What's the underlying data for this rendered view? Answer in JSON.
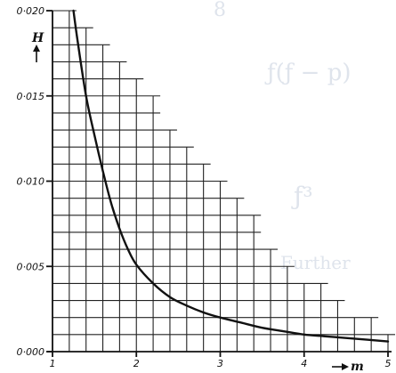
{
  "chart_data": {
    "type": "line",
    "title": "",
    "xlabel": "m",
    "ylabel": "H",
    "xlim": [
      1,
      5
    ],
    "ylim": [
      0,
      0.02
    ],
    "x_ticks": [
      1,
      2,
      3,
      4,
      5
    ],
    "x_tick_labels": [
      "1",
      "2",
      "3",
      "4",
      "5"
    ],
    "y_ticks": [
      0,
      0.005,
      0.01,
      0.015,
      0.02
    ],
    "y_tick_labels": [
      "0·000",
      "0·005",
      "0·010",
      "0·015",
      "0·020"
    ],
    "grid": true,
    "grid_step_x": 0.2,
    "grid_step_y": 0.001,
    "grid_envelope": [
      [
        1.0,
        0.02
      ],
      [
        1.2,
        0.02
      ],
      [
        1.4,
        0.019
      ],
      [
        1.6,
        0.018
      ],
      [
        1.8,
        0.017
      ],
      [
        2.0,
        0.016
      ],
      [
        2.2,
        0.015
      ],
      [
        2.4,
        0.013
      ],
      [
        2.6,
        0.012
      ],
      [
        2.8,
        0.011
      ],
      [
        3.0,
        0.01
      ],
      [
        3.2,
        0.009
      ],
      [
        3.4,
        0.008
      ],
      [
        3.6,
        0.006
      ],
      [
        3.8,
        0.005
      ],
      [
        4.0,
        0.004
      ],
      [
        4.2,
        0.004
      ],
      [
        4.4,
        0.003
      ],
      [
        4.6,
        0.002
      ],
      [
        4.8,
        0.002
      ],
      [
        5.0,
        0.001
      ]
    ],
    "series": [
      {
        "x": [
          1.25,
          1.3,
          1.4,
          1.5,
          1.6,
          1.7,
          1.8,
          1.9,
          2.0,
          2.2,
          2.4,
          2.6,
          2.8,
          3.0,
          3.25,
          3.5,
          3.75,
          4.0,
          4.25,
          4.5,
          4.75,
          5.0
        ],
        "y": [
          0.02,
          0.0182,
          0.015,
          0.0127,
          0.0106,
          0.0087,
          0.0072,
          0.006,
          0.0051,
          0.004,
          0.0032,
          0.0027,
          0.0023,
          0.002,
          0.0017,
          0.0014,
          0.0012,
          0.001,
          0.0009,
          0.0008,
          0.0007,
          0.0006
        ]
      }
    ]
  },
  "colors": {
    "ink": "#111111",
    "background": "#ffffff",
    "bleed_through": "#dfe4ec"
  }
}
